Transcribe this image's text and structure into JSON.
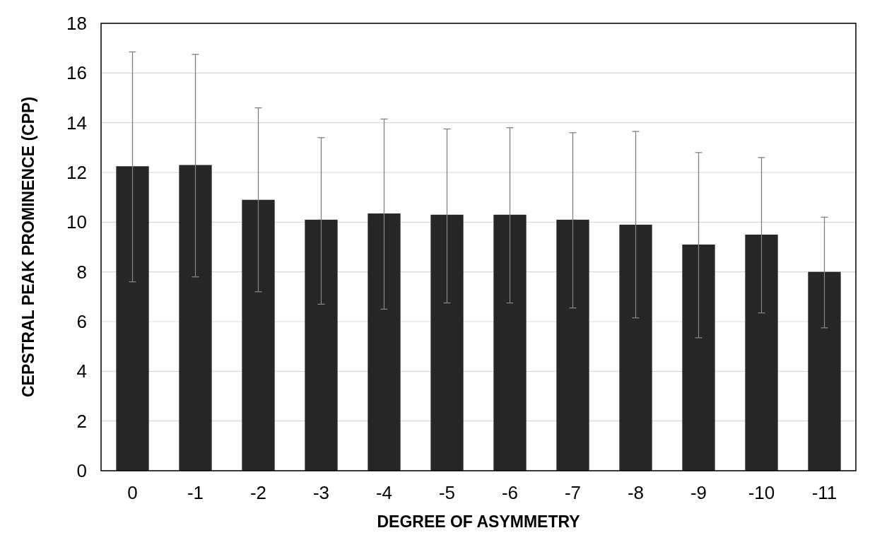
{
  "chart_data": {
    "type": "bar",
    "xlabel": "DEGREE OF ASYMMETRY",
    "ylabel": "CEPSTRAL PEAK PROMINENCE (CPP)",
    "categories": [
      "0",
      "-1",
      "-2",
      "-3",
      "-4",
      "-5",
      "-6",
      "-7",
      "-8",
      "-9",
      "-10",
      "-11"
    ],
    "values": [
      12.25,
      12.3,
      10.9,
      10.1,
      10.35,
      10.3,
      10.3,
      10.1,
      9.9,
      9.1,
      9.5,
      8.0
    ],
    "errors": [
      [
        7.6,
        16.85
      ],
      [
        7.8,
        16.75
      ],
      [
        7.2,
        14.6
      ],
      [
        6.7,
        13.4
      ],
      [
        6.5,
        14.15
      ],
      [
        6.75,
        13.75
      ],
      [
        6.75,
        13.8
      ],
      [
        6.55,
        13.6
      ],
      [
        6.15,
        13.65
      ],
      [
        5.35,
        12.8
      ],
      [
        6.35,
        12.6
      ],
      [
        5.75,
        10.2
      ]
    ],
    "color": "#262626",
    "ylim": [
      0,
      18
    ],
    "yticks": [
      0,
      2,
      4,
      6,
      8,
      10,
      12,
      14,
      16,
      18
    ],
    "grid": "y"
  }
}
